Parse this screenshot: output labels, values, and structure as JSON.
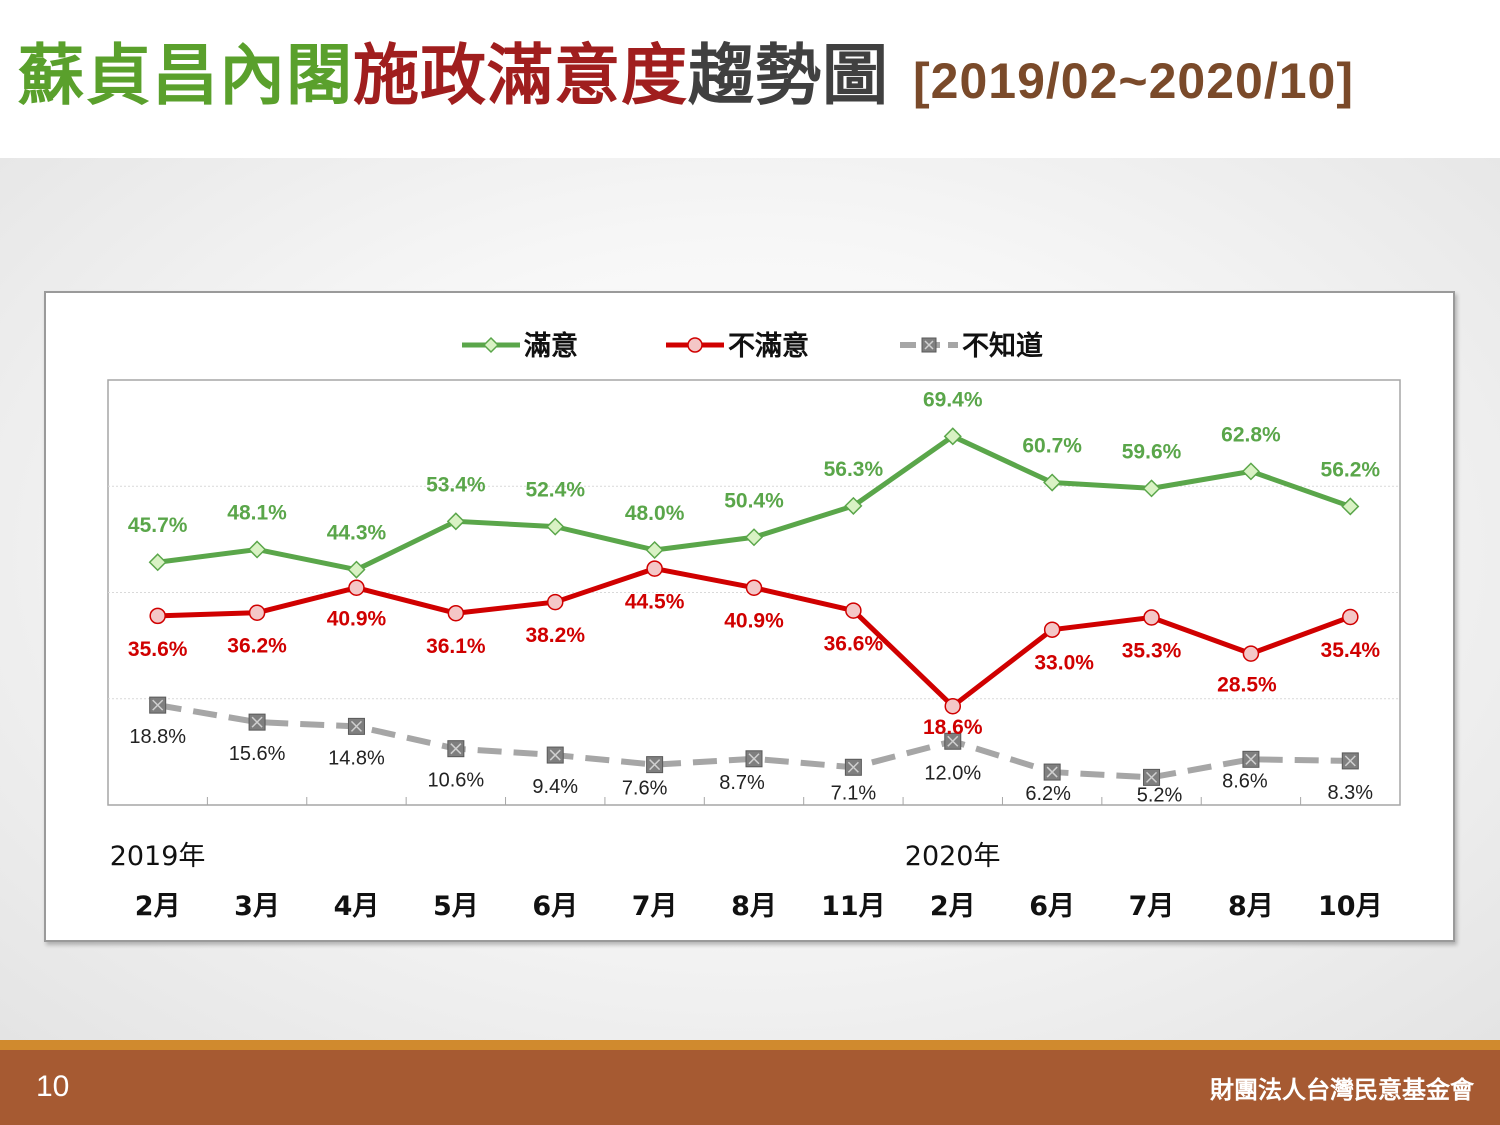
{
  "header": {
    "title_part1": "蘇貞昌內閣",
    "title_part2": "施政滿意度",
    "title_part3": "趨勢圖",
    "title_range": "[2019/02~2020/10]"
  },
  "footer": {
    "page_number": "10",
    "org_name": "財團法人台灣民意基金會"
  },
  "colors": {
    "satisfied": "#5aa64a",
    "dissatisfied": "#d00000",
    "unknown": "#a6a6a6",
    "title_green": "#5aa02c",
    "title_red": "#a01e1e",
    "footer_bg": "#a65a32"
  },
  "chart_data": {
    "type": "line",
    "categories": [
      "2月",
      "3月",
      "4月",
      "5月",
      "6月",
      "7月",
      "8月",
      "11月",
      "2月",
      "6月",
      "7月",
      "8月",
      "10月"
    ],
    "year_labels": [
      {
        "label": "2019年",
        "category_index": 0
      },
      {
        "label": "2020年",
        "category_index": 8
      }
    ],
    "legend_position": "top-center",
    "grid": true,
    "series": [
      {
        "name": "滿意",
        "color": "#5aa64a",
        "marker": "diamond",
        "dashed": false,
        "values": [
          45.7,
          48.1,
          44.3,
          53.4,
          52.4,
          48.0,
          50.4,
          56.3,
          69.4,
          60.7,
          59.6,
          62.8,
          56.2
        ],
        "labels": [
          "45.7%",
          "48.1%",
          "44.3%",
          "53.4%",
          "52.4%",
          "48.0%",
          "50.4%",
          "56.3%",
          "69.4%",
          "60.7%",
          "59.6%",
          "62.8%",
          "56.2%"
        ]
      },
      {
        "name": "不滿意",
        "color": "#d00000",
        "marker": "circle",
        "dashed": false,
        "values": [
          35.6,
          36.2,
          40.9,
          36.1,
          38.2,
          44.5,
          40.9,
          36.6,
          18.6,
          33.0,
          35.3,
          28.5,
          35.4
        ],
        "labels": [
          "35.6%",
          "36.2%",
          "40.9%",
          "36.1%",
          "38.2%",
          "44.5%",
          "40.9%",
          "36.6%",
          "18.6%",
          "33.0%",
          "35.3%",
          "28.5%",
          "35.4%"
        ]
      },
      {
        "name": "不知道",
        "color": "#a6a6a6",
        "marker": "square-x",
        "dashed": true,
        "values": [
          18.8,
          15.6,
          14.8,
          10.6,
          9.4,
          7.6,
          8.7,
          7.1,
          12.0,
          6.2,
          5.2,
          8.6,
          8.3
        ],
        "labels": [
          "18.8%",
          "15.6%",
          "14.8%",
          "10.6%",
          "9.4%",
          "7.6%",
          "8.7%",
          "7.1%",
          "12.0%",
          "6.2%",
          "5.2%",
          "8.6%",
          "8.3%"
        ]
      }
    ]
  }
}
